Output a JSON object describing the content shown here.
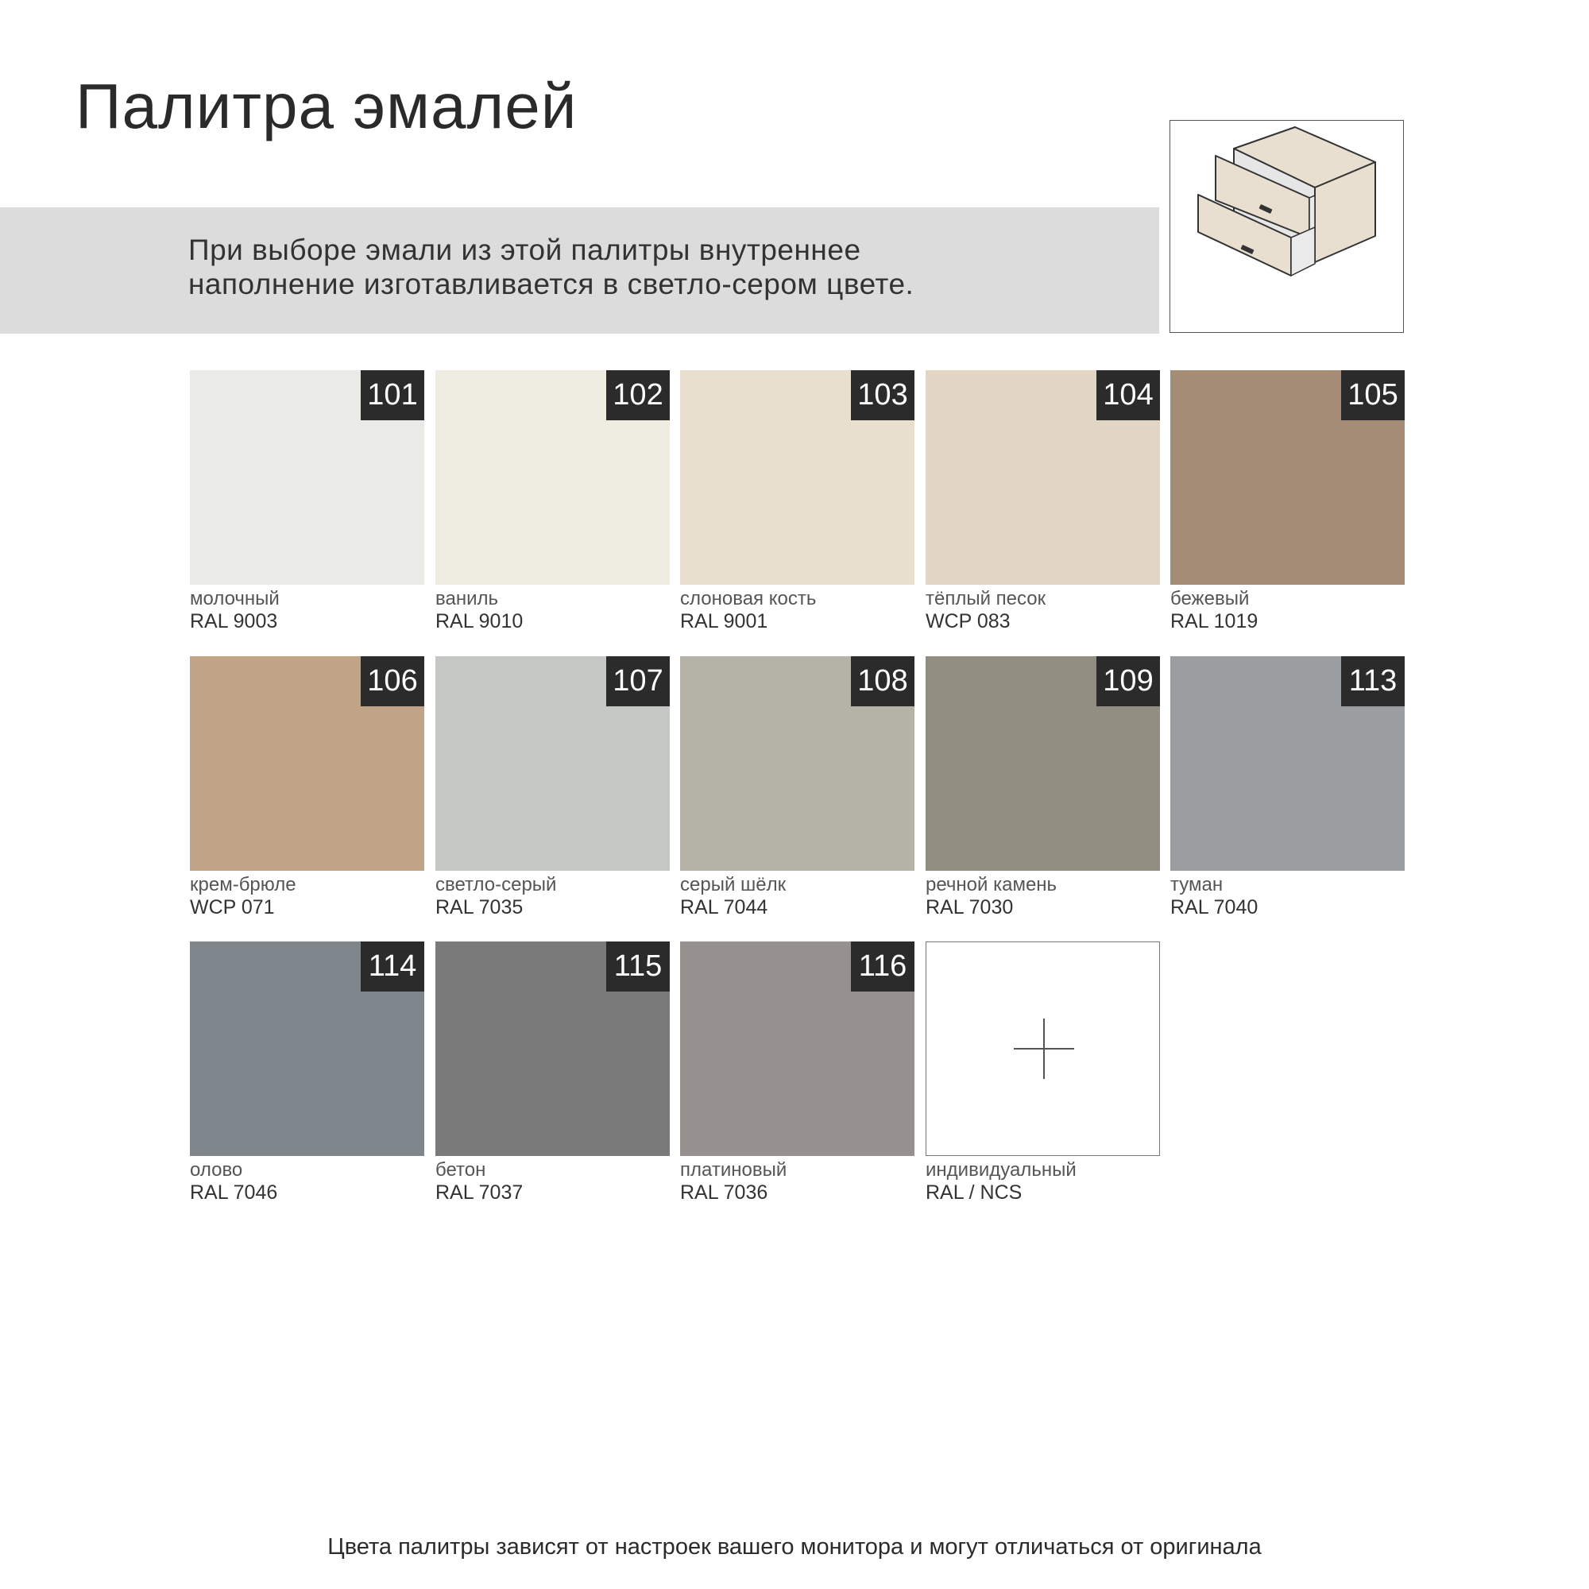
{
  "title": "Палитра эмалей",
  "notice": "При выборе эмали из этой палитры внутреннее наполнение изготавливается в светло-сером цвете.",
  "notice_lines": [
    "При выборе эмали из этой палитры внутреннее",
    "наполнение изготавливается в светло-сером цвете."
  ],
  "illustration": {
    "icon": "drawer-unit-icon",
    "front_color": "#e8dfd0",
    "interior_color": "#e6e6e6"
  },
  "swatches": [
    {
      "number": "101",
      "name": "молочный",
      "code": "RAL 9003",
      "color": "#eaeae6"
    },
    {
      "number": "102",
      "name": "ваниль",
      "code": "RAL 9010",
      "color": "#efede2"
    },
    {
      "number": "103",
      "name": "слоновая кость",
      "code": "RAL 9001",
      "color": "#e8dfcf"
    },
    {
      "number": "104",
      "name": "тёплый песок",
      "code": "WCP 083",
      "color": "#e0d6c3"
    },
    {
      "number": "105",
      "name": "бежевый",
      "code": "RAL 1019",
      "color": "#a48c77"
    },
    {
      "number": "106",
      "name": "крем-брюле",
      "code": "WCP 071",
      "color": "#c1a388"
    },
    {
      "number": "107",
      "name": "светло-серый",
      "code": "RAL 7035",
      "color": "#c4c7c3"
    },
    {
      "number": "108",
      "name": "серый шёлк",
      "code": "RAL 7044",
      "color": "#b5b3a7"
    },
    {
      "number": "109",
      "name": "речной камень",
      "code": "RAL 7030",
      "color": "#918e81"
    },
    {
      "number": "113",
      "name": "туман",
      "code": "RAL 7040",
      "color": "#9a9ea1"
    },
    {
      "number": "114",
      "name": "олово",
      "code": "RAL 7046",
      "color": "#7e868c"
    },
    {
      "number": "115",
      "name": "бетон",
      "code": "RAL 7037",
      "color": "#7a7a7a"
    },
    {
      "number": "116",
      "name": "платиновый",
      "code": "RAL 7036",
      "color": "#96918f"
    }
  ],
  "custom": {
    "name": "индивидуальный",
    "code": "RAL / NCS",
    "icon": "plus-icon"
  },
  "footer": "Цвета палитры зависят от настроек вашего монитора и могут отличаться от оригинала"
}
